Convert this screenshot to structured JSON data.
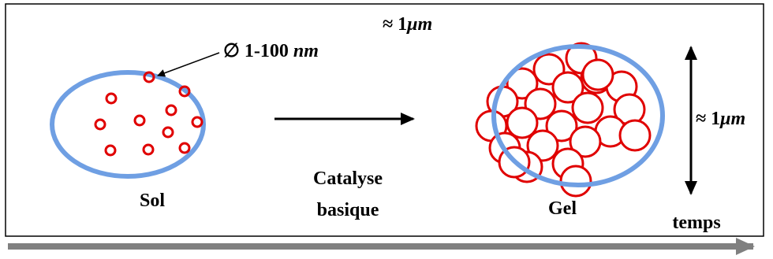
{
  "top_size": {
    "prefix": "≈ 1",
    "unit": "μm"
  },
  "particle_size": {
    "prefix": "∅ 1-100 ",
    "unit": "nm"
  },
  "side_size": {
    "prefix": "≈ 1",
    "unit": "μm"
  },
  "sol_label": "Sol",
  "process": [
    "Catalyse",
    "basique"
  ],
  "gel_label": "Gel",
  "time_label": "temps"
}
